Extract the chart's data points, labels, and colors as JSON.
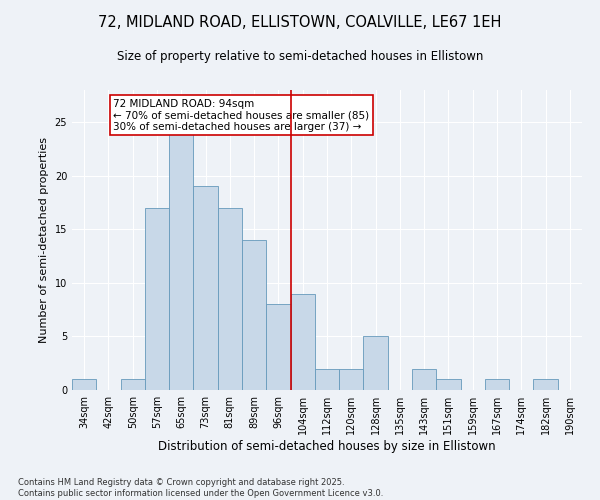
{
  "title": "72, MIDLAND ROAD, ELLISTOWN, COALVILLE, LE67 1EH",
  "subtitle": "Size of property relative to semi-detached houses in Ellistown",
  "xlabel": "Distribution of semi-detached houses by size in Ellistown",
  "ylabel": "Number of semi-detached properties",
  "categories": [
    "34sqm",
    "42sqm",
    "50sqm",
    "57sqm",
    "65sqm",
    "73sqm",
    "81sqm",
    "89sqm",
    "96sqm",
    "104sqm",
    "112sqm",
    "120sqm",
    "128sqm",
    "135sqm",
    "143sqm",
    "151sqm",
    "159sqm",
    "167sqm",
    "174sqm",
    "182sqm",
    "190sqm"
  ],
  "values": [
    1,
    0,
    1,
    17,
    25,
    19,
    17,
    14,
    8,
    9,
    2,
    2,
    5,
    0,
    2,
    1,
    0,
    1,
    0,
    1,
    0
  ],
  "bar_color": "#c8d8e8",
  "bar_edge_color": "#6699bb",
  "vline_x_index": 8.5,
  "vline_color": "#cc0000",
  "annotation_title": "72 MIDLAND ROAD: 94sqm",
  "annotation_line1": "← 70% of semi-detached houses are smaller (85)",
  "annotation_line2": "30% of semi-detached houses are larger (37) →",
  "annotation_box_color": "#cc0000",
  "annotation_bg": "#ffffff",
  "ylim": [
    0,
    28
  ],
  "yticks": [
    0,
    5,
    10,
    15,
    20,
    25
  ],
  "background_color": "#eef2f7",
  "footer_line1": "Contains HM Land Registry data © Crown copyright and database right 2025.",
  "footer_line2": "Contains public sector information licensed under the Open Government Licence v3.0.",
  "title_fontsize": 10.5,
  "subtitle_fontsize": 8.5,
  "ylabel_fontsize": 8,
  "xlabel_fontsize": 8.5,
  "tick_fontsize": 7,
  "annotation_fontsize": 7.5,
  "footer_fontsize": 6
}
